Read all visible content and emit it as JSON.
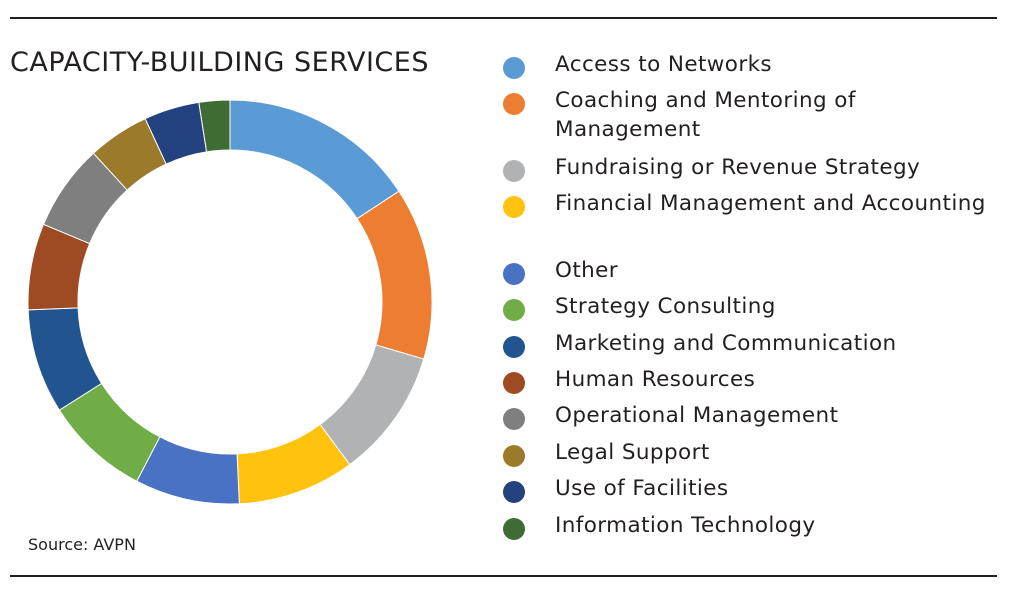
{
  "title": "CAPACITY-BUILDING SERVICES",
  "source": "Source: AVPN",
  "chart_data": {
    "type": "pie",
    "title": "CAPACITY-BUILDING SERVICES",
    "legend_position": "right",
    "series": [
      {
        "name": "Access to Networks",
        "value": 16.0,
        "color": "#5b9bd5"
      },
      {
        "name": "Coaching and Mentoring of Management",
        "value": 14.0,
        "color": "#ed7d31"
      },
      {
        "name": "Fundraising or Revenue Strategy",
        "value": 10.5,
        "color": "#b1b2b4"
      },
      {
        "name": "Financial Management and Accounting",
        "value": 9.5,
        "color": "#ffc20e"
      },
      {
        "name": "Other",
        "value": 8.5,
        "color": "#4a72c4"
      },
      {
        "name": "Strategy Consulting",
        "value": 8.5,
        "color": "#70ad47"
      },
      {
        "name": "Marketing and Communication",
        "value": 8.5,
        "color": "#22558f"
      },
      {
        "name": "Human Resources",
        "value": 7.0,
        "color": "#9e4a23"
      },
      {
        "name": "Operational Management",
        "value": 7.0,
        "color": "#7f7f7f"
      },
      {
        "name": "Legal Support",
        "value": 5.0,
        "color": "#9c7a2c"
      },
      {
        "name": "Use of Facilities",
        "value": 4.5,
        "color": "#244180"
      },
      {
        "name": "Information Technology",
        "value": 2.5,
        "color": "#3f6b35"
      }
    ]
  }
}
